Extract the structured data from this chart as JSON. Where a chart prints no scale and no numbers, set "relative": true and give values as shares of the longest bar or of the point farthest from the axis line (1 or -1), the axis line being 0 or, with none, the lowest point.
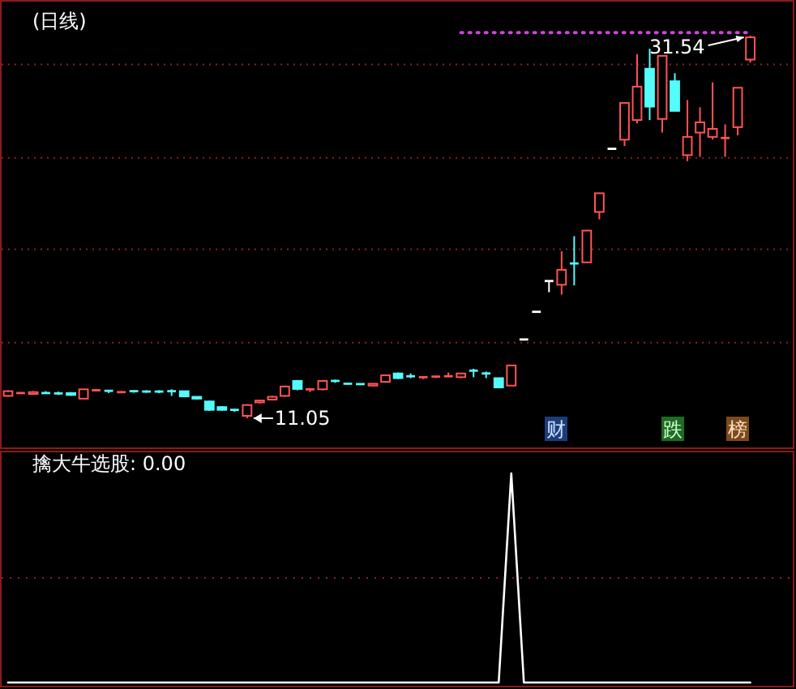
{
  "chart_data": [
    {
      "type": "candlestick",
      "title": "(日线)",
      "categories": [
        null,
        null,
        null,
        null,
        null,
        null,
        null,
        null,
        null,
        null,
        null,
        null,
        null,
        null,
        null,
        null,
        null,
        null,
        null,
        null,
        null,
        null,
        null,
        null,
        null,
        null,
        null,
        null,
        null,
        null,
        null,
        null,
        null,
        null,
        null,
        null,
        null,
        null,
        null,
        null,
        null,
        null,
        null,
        null,
        null,
        null,
        null,
        null,
        null,
        null,
        null,
        null,
        null,
        null,
        null,
        null,
        null,
        null,
        null,
        null
      ],
      "ohlc": [
        [
          12.25,
          12.55,
          12.2,
          12.5
        ],
        [
          12.35,
          12.45,
          12.35,
          12.4
        ],
        [
          12.35,
          12.5,
          12.3,
          12.45
        ],
        [
          12.4,
          12.5,
          12.35,
          12.38
        ],
        [
          12.38,
          12.48,
          12.3,
          12.35
        ],
        [
          12.4,
          12.45,
          12.25,
          12.3
        ],
        [
          12.1,
          12.62,
          12.08,
          12.6
        ],
        [
          12.52,
          12.62,
          12.5,
          12.55
        ],
        [
          12.52,
          12.55,
          12.4,
          12.45
        ],
        [
          12.4,
          12.5,
          12.4,
          12.45
        ],
        [
          12.5,
          12.55,
          12.42,
          12.45
        ],
        [
          12.48,
          12.55,
          12.42,
          12.46
        ],
        [
          12.48,
          12.55,
          12.4,
          12.45
        ],
        [
          12.5,
          12.6,
          12.25,
          12.45
        ],
        [
          12.5,
          12.52,
          12.2,
          12.22
        ],
        [
          12.2,
          12.22,
          12.05,
          12.1
        ],
        [
          11.95,
          12.0,
          11.45,
          11.5
        ],
        [
          11.65,
          11.7,
          11.45,
          11.5
        ],
        [
          11.5,
          11.55,
          11.4,
          11.48
        ],
        [
          11.18,
          11.8,
          11.05,
          11.76
        ],
        [
          11.9,
          12.05,
          11.85,
          12.0
        ],
        [
          12.05,
          12.25,
          12.0,
          12.2
        ],
        [
          12.25,
          12.8,
          12.2,
          12.75
        ],
        [
          13.05,
          13.1,
          12.55,
          12.62
        ],
        [
          12.55,
          12.62,
          12.45,
          12.6
        ],
        [
          12.6,
          13.1,
          12.55,
          13.05
        ],
        [
          13.05,
          13.12,
          12.95,
          13.02
        ],
        [
          12.9,
          12.95,
          12.85,
          12.87
        ],
        [
          12.88,
          12.9,
          12.82,
          12.84
        ],
        [
          12.8,
          12.92,
          12.78,
          12.9
        ],
        [
          13.0,
          13.4,
          12.95,
          13.35
        ],
        [
          13.45,
          13.5,
          13.15,
          13.2
        ],
        [
          13.3,
          13.45,
          13.2,
          13.28
        ],
        [
          13.2,
          13.3,
          13.15,
          13.25
        ],
        [
          13.22,
          13.3,
          13.2,
          13.28
        ],
        [
          13.25,
          13.5,
          13.25,
          13.3
        ],
        [
          13.25,
          13.45,
          13.2,
          13.45
        ],
        [
          13.6,
          13.7,
          13.25,
          13.55
        ],
        [
          13.45,
          13.55,
          13.2,
          13.4
        ],
        [
          13.2,
          13.2,
          12.65,
          12.7
        ],
        [
          12.8,
          13.9,
          12.8,
          13.88
        ],
        [
          15.27,
          15.27,
          15.27,
          15.27
        ],
        [
          16.75,
          16.75,
          16.75,
          16.75
        ],
        [
          18.4,
          18.4,
          17.8,
          18.4
        ],
        [
          18.2,
          20.0,
          17.67,
          19.0
        ],
        [
          19.34,
          20.8,
          18.17,
          19.3
        ],
        [
          19.4,
          21.1,
          19.4,
          21.1
        ],
        [
          22.1,
          23.1,
          21.7,
          23.1
        ],
        [
          25.48,
          25.48,
          25.48,
          25.48
        ],
        [
          25.97,
          27.97,
          25.63,
          27.94
        ],
        [
          27.02,
          30.55,
          26.84,
          28.81
        ],
        [
          29.77,
          30.84,
          27.02,
          27.74
        ],
        [
          27.08,
          30.46,
          26.35,
          30.46
        ],
        [
          29.1,
          29.53,
          27.51,
          27.51
        ],
        [
          25.14,
          28.09,
          24.82,
          26.12
        ],
        [
          26.35,
          27.71,
          25.05,
          26.9
        ],
        [
          26.12,
          29.04,
          25.98,
          26.55
        ],
        [
          26.0,
          26.79,
          25.05,
          26.06
        ],
        [
          26.64,
          28.75,
          26.2,
          28.75
        ],
        [
          30.26,
          31.54,
          30.1,
          31.45
        ]
      ],
      "colors": [
        "#ff5454",
        "#ff5454",
        "#ff5454",
        "#54fcfc",
        "#54fcfc",
        "#54fcfc",
        "#ff5454",
        "#ff5454",
        "#54fcfc",
        "#ff5454",
        "#54fcfc",
        "#54fcfc",
        "#54fcfc",
        "#54fcfc",
        "#54fcfc",
        "#54fcfc",
        "#54fcfc",
        "#54fcfc",
        "#54fcfc",
        "#ff5454",
        "#ff5454",
        "#ff5454",
        "#ff5454",
        "#54fcfc",
        "#ff5454",
        "#ff5454",
        "#54fcfc",
        "#54fcfc",
        "#54fcfc",
        "#ff5454",
        "#ff5454",
        "#54fcfc",
        "#54fcfc",
        "#ff5454",
        "#ff5454",
        "#ff5454",
        "#ff5454",
        "#54fcfc",
        "#54fcfc",
        "#54fcfc",
        "#ff5454",
        "#ffffff",
        "#ffffff",
        "#ffffff",
        "#ff5454",
        "#54fcfc",
        "#ff5454",
        "#ff5454",
        "#ffffff",
        "#ff5454",
        "#ff5454",
        "#54fcfc",
        "#ff5454",
        "#54fcfc",
        "#ff5454",
        "#ff5454",
        "#ff5454",
        "#ff5454",
        "#ff5454",
        "#ff5454"
      ],
      "series": [
        {
          "type": "line",
          "color": "#cc44dd",
          "line_style": "dotted",
          "values": [
            null,
            null,
            null,
            null,
            null,
            null,
            null,
            null,
            null,
            null,
            null,
            null,
            null,
            null,
            null,
            null,
            null,
            null,
            null,
            null,
            null,
            null,
            null,
            null,
            null,
            null,
            null,
            null,
            null,
            null,
            null,
            null,
            null,
            null,
            null,
            null,
            31.7,
            31.7,
            31.7,
            31.7,
            31.7,
            31.7,
            31.7,
            31.7,
            31.7,
            31.7,
            31.7,
            31.7,
            31.7,
            31.7,
            31.7,
            31.7,
            31.7,
            31.7,
            31.7,
            31.7,
            31.7,
            31.7,
            31.7,
            31.7
          ]
        }
      ],
      "yticks": [
        {
          "value": 15.1,
          "label": null
        },
        {
          "value": 20.1,
          "label": null
        },
        {
          "value": 25.0,
          "label": null
        },
        {
          "value": 30.0,
          "label": null
        }
      ],
      "grid": "y",
      "annotations": [
        {
          "text": "31.54",
          "y": 31.54
        },
        "11.05",
        "财",
        "跌",
        "榜"
      ]
    },
    {
      "type": "line",
      "title": "擒大牛选股: 0.00",
      "relative": true,
      "color": "#ffffff",
      "categories": [
        null,
        null,
        null,
        null,
        null,
        null,
        null,
        null,
        null,
        null,
        null,
        null,
        null,
        null,
        null,
        null,
        null,
        null,
        null,
        null,
        null,
        null,
        null,
        null,
        null,
        null,
        null,
        null,
        null,
        null,
        null,
        null,
        null,
        null,
        null,
        null,
        null,
        null,
        null,
        null,
        null,
        null,
        null,
        null,
        null,
        null,
        null,
        null,
        null,
        null,
        null,
        null,
        null,
        null,
        null,
        null,
        null,
        null,
        null,
        null
      ],
      "values": [
        0,
        0,
        0,
        0,
        0,
        0,
        0,
        0,
        0,
        0,
        0,
        0,
        0,
        0,
        0,
        0,
        0,
        0,
        0,
        0,
        0,
        0,
        0,
        0,
        0,
        0,
        0,
        0,
        0,
        0,
        0,
        0,
        0,
        0,
        0,
        0,
        0,
        0,
        0,
        0,
        1,
        0,
        0,
        0,
        0,
        0,
        0,
        0,
        0,
        0,
        0,
        0,
        0,
        0,
        0,
        0,
        0,
        0,
        0,
        0
      ],
      "ref_lines": [
        {
          "axis": "y",
          "value": 0.5,
          "color": "#8b2020",
          "line_style": "dotted"
        }
      ]
    }
  ]
}
